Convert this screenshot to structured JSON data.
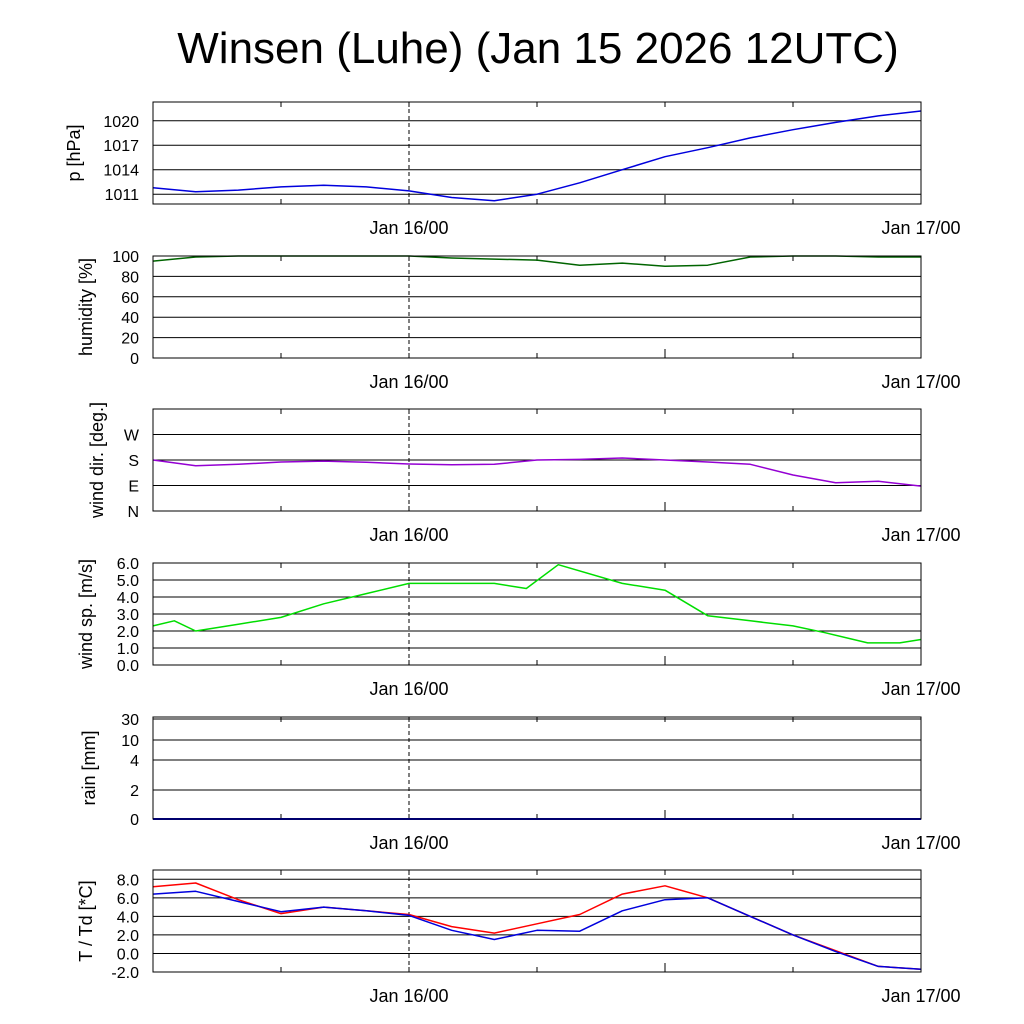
{
  "title": "Winsen (Luhe) (Jan 15 2026 12UTC)",
  "x_tick_labels": [
    "Jan 16/00",
    "Jan 17/00"
  ],
  "chart_data": [
    {
      "type": "line",
      "ylabel": "p [hPa]",
      "x": [
        "Jan 15 12:00",
        "Jan 15 14:00",
        "Jan 15 16:00",
        "Jan 15 18:00",
        "Jan 15 20:00",
        "Jan 15 22:00",
        "Jan 16 00:00",
        "Jan 16 02:00",
        "Jan 16 04:00",
        "Jan 16 06:00",
        "Jan 16 08:00",
        "Jan 16 10:00",
        "Jan 16 12:00",
        "Jan 16 14:00",
        "Jan 16 16:00",
        "Jan 16 18:00",
        "Jan 16 20:00",
        "Jan 16 22:00",
        "Jan 17 00:00"
      ],
      "yticks": [
        1011,
        1014,
        1017,
        1020
      ],
      "ylim": [
        1009.8,
        1022.3
      ],
      "color": "#0000dd",
      "series": [
        {
          "values": [
            1011.8,
            1011.3,
            1011.5,
            1011.9,
            1012.1,
            1011.9,
            1011.4,
            1010.6,
            1010.2,
            1011.0,
            1012.4,
            1014.0,
            1015.6,
            1016.7,
            1017.9,
            1018.9,
            1019.8,
            1020.6,
            1021.2
          ]
        }
      ]
    },
    {
      "type": "line",
      "ylabel": "humidity [%]",
      "x": [
        "Jan 15 12:00",
        "Jan 15 14:00",
        "Jan 15 16:00",
        "Jan 15 18:00",
        "Jan 15 20:00",
        "Jan 15 22:00",
        "Jan 16 00:00",
        "Jan 16 02:00",
        "Jan 16 04:00",
        "Jan 16 06:00",
        "Jan 16 08:00",
        "Jan 16 10:00",
        "Jan 16 12:00",
        "Jan 16 14:00",
        "Jan 16 16:00",
        "Jan 16 18:00",
        "Jan 16 20:00",
        "Jan 16 22:00",
        "Jan 17 00:00"
      ],
      "yticks": [
        0,
        20,
        40,
        60,
        80,
        100
      ],
      "ylim": [
        0,
        100
      ],
      "color": "#006400",
      "series": [
        {
          "values": [
            95,
            99,
            100,
            100,
            100,
            100,
            100,
            98,
            97,
            96,
            91,
            93,
            90,
            91,
            99,
            100,
            100,
            99,
            99
          ]
        }
      ]
    },
    {
      "type": "line",
      "ylabel": "wind dir. [deg.]",
      "x": [
        "Jan 15 12:00",
        "Jan 15 14:00",
        "Jan 15 16:00",
        "Jan 15 18:00",
        "Jan 15 20:00",
        "Jan 15 22:00",
        "Jan 16 00:00",
        "Jan 16 02:00",
        "Jan 16 04:00",
        "Jan 16 06:00",
        "Jan 16 08:00",
        "Jan 16 10:00",
        "Jan 16 12:00",
        "Jan 16 14:00",
        "Jan 16 16:00",
        "Jan 16 18:00",
        "Jan 16 20:00",
        "Jan 16 22:00",
        "Jan 17 00:00"
      ],
      "yticks": [
        0,
        90,
        180,
        270
      ],
      "ytick_labels": [
        "N",
        "E",
        "S",
        "W"
      ],
      "ylim": [
        0,
        360
      ],
      "color": "#9400d3",
      "series": [
        {
          "values": [
            180,
            160,
            165,
            173,
            176,
            172,
            166,
            163,
            165,
            180,
            182,
            187,
            180,
            173,
            165,
            127,
            100,
            105,
            88
          ]
        }
      ]
    },
    {
      "type": "line",
      "ylabel": "wind sp. [m/s]",
      "x": [
        "Jan 15 12:00",
        "Jan 15 13:00",
        "Jan 15 14:00",
        "Jan 15 16:00",
        "Jan 15 18:00",
        "Jan 15 20:00",
        "Jan 15 22:00",
        "Jan 16 00:00",
        "Jan 16 02:00",
        "Jan 16 04:00",
        "Jan 16 05:30",
        "Jan 16 07:00",
        "Jan 16 10:00",
        "Jan 16 12:00",
        "Jan 16 14:00",
        "Jan 16 16:00",
        "Jan 16 18:00",
        "Jan 16 19:30",
        "Jan 16 21:30",
        "Jan 16 23:00",
        "Jan 17 00:00"
      ],
      "yticks": [
        0.0,
        1.0,
        2.0,
        3.0,
        4.0,
        5.0,
        6.0
      ],
      "ytick_labels": [
        "0.0",
        "1.0",
        "2.0",
        "3.0",
        "4.0",
        "5.0",
        "6.0"
      ],
      "ylim": [
        0,
        6
      ],
      "color": "#00dd00",
      "series": [
        {
          "values": [
            2.3,
            2.6,
            2.0,
            2.4,
            2.8,
            3.6,
            4.2,
            4.8,
            4.8,
            4.8,
            4.5,
            5.9,
            4.8,
            4.4,
            2.9,
            2.6,
            2.3,
            1.9,
            1.3,
            1.3,
            1.5
          ]
        }
      ]
    },
    {
      "type": "line",
      "ylabel": "rain [mm]",
      "x": [
        "Jan 15 12:00",
        "Jan 17 00:00"
      ],
      "yticks": [
        0,
        2,
        4,
        10,
        30
      ],
      "ytick_labels": [
        "0",
        "2",
        "4",
        "10",
        "30"
      ],
      "color": "#0000dd",
      "series": [
        {
          "values": [
            0,
            0
          ]
        }
      ]
    },
    {
      "type": "line",
      "ylabel": "T / Td [*C]",
      "x": [
        "Jan 15 12:00",
        "Jan 15 14:00",
        "Jan 15 16:00",
        "Jan 15 18:00",
        "Jan 15 20:00",
        "Jan 15 22:00",
        "Jan 16 00:00",
        "Jan 16 02:00",
        "Jan 16 04:00",
        "Jan 16 06:00",
        "Jan 16 08:00",
        "Jan 16 10:00",
        "Jan 16 12:00",
        "Jan 16 14:00",
        "Jan 16 16:00",
        "Jan 16 18:00",
        "Jan 16 20:00",
        "Jan 16 22:00",
        "Jan 17 00:00"
      ],
      "yticks": [
        -2.0,
        0.0,
        2.0,
        4.0,
        6.0,
        8.0
      ],
      "ytick_labels": [
        "-2.0",
        "0.0",
        "2.0",
        "4.0",
        "6.0",
        "8.0"
      ],
      "ylim": [
        -2.0,
        9.0
      ],
      "series": [
        {
          "color": "#ff0000",
          "values": [
            7.2,
            7.6,
            5.8,
            4.3,
            5.0,
            4.6,
            4.2,
            2.9,
            2.2,
            3.2,
            4.2,
            6.4,
            7.3,
            6.0,
            4.0,
            2.0,
            0.3,
            -1.4,
            -1.7
          ]
        },
        {
          "color": "#0000dd",
          "values": [
            6.4,
            6.7,
            5.6,
            4.5,
            5.0,
            4.6,
            4.1,
            2.5,
            1.5,
            2.5,
            2.4,
            4.6,
            5.8,
            6.0,
            4.0,
            2.0,
            0.2,
            -1.4,
            -1.7
          ]
        }
      ]
    }
  ]
}
